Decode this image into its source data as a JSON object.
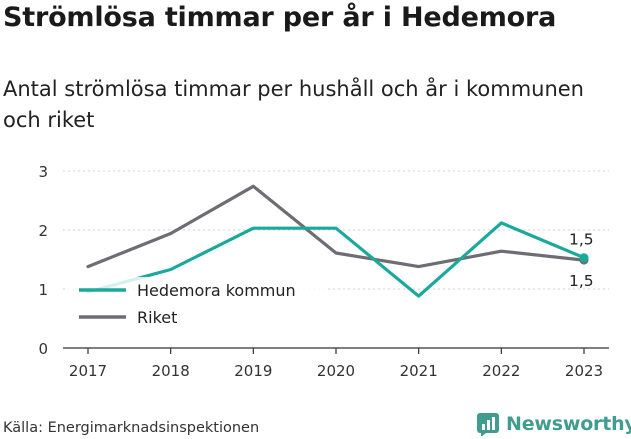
{
  "title": "Strömlösa timmar per år i Hedemora",
  "subtitle": "Antal strömlösa timmar per hushåll och år i kommunen och riket",
  "source": "Källa: Energimarknadsinspektionen",
  "brand": {
    "name": "Newsworthy",
    "icon": "newsworthy-logo-icon"
  },
  "colors": {
    "hedemora": "#1aa99c",
    "riket": "#6d6d74",
    "grid": "#d0d0d0",
    "axis": "#333333"
  },
  "chart_data": {
    "type": "line",
    "x": [
      "2017",
      "2018",
      "2019",
      "2020",
      "2021",
      "2022",
      "2023"
    ],
    "yticks": [
      "0",
      "1",
      "2",
      "3"
    ],
    "ylim": [
      0,
      3
    ],
    "grid": true,
    "legend_position": "bottom-left",
    "series": [
      {
        "name": "Hedemora kommun",
        "values": [
          0.95,
          1.33,
          2.03,
          2.03,
          0.88,
          2.12,
          1.53
        ],
        "end_label": "1,5"
      },
      {
        "name": "Riket",
        "values": [
          1.38,
          1.94,
          2.74,
          1.61,
          1.38,
          1.64,
          1.49
        ],
        "end_label": "1,5"
      }
    ]
  }
}
